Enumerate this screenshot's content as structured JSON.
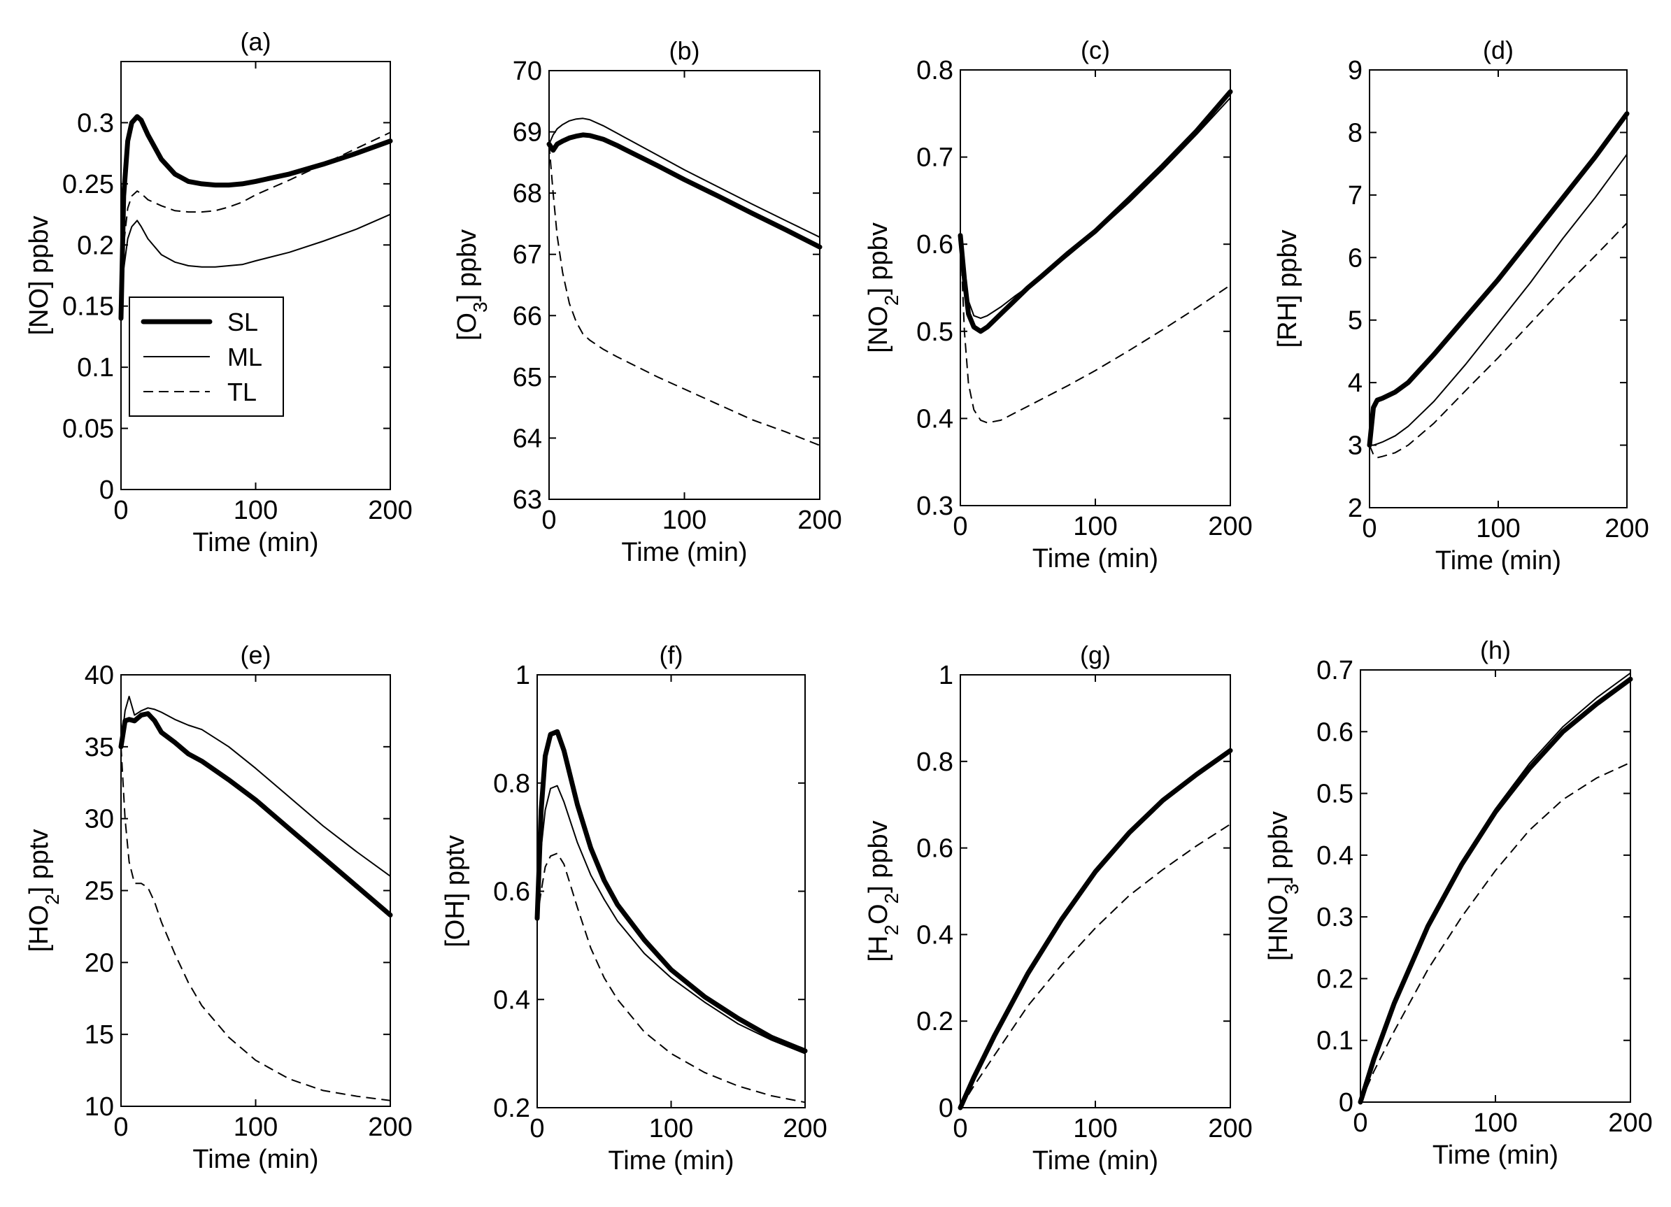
{
  "figure": {
    "legend": {
      "entries": [
        "SL",
        "ML",
        "TL"
      ],
      "placement": "inside-left panel (a)"
    },
    "time_unit_label": "Time (min)"
  },
  "chart_data": [
    {
      "id": "a",
      "type": "line",
      "title": "(a)",
      "ylabel": "[NO] ppbv",
      "ysub": "",
      "yunit": "",
      "xlabel": "Time (min)",
      "xlim": [
        0,
        200
      ],
      "ylim": [
        0,
        0.35
      ],
      "xticks": [
        0,
        100,
        200
      ],
      "yticks": [
        0,
        0.05,
        0.1,
        0.15,
        0.2,
        0.25,
        0.3
      ],
      "ytick_labels": [
        "0",
        "0.05",
        "0.1",
        "0.15",
        "0.2",
        "0.25",
        "0.3"
      ],
      "x": [
        0,
        2,
        5,
        8,
        12,
        15,
        20,
        30,
        40,
        50,
        60,
        70,
        80,
        90,
        100,
        125,
        150,
        175,
        200
      ],
      "series": [
        {
          "name": "SL",
          "values": [
            0.14,
            0.24,
            0.285,
            0.3,
            0.305,
            0.302,
            0.29,
            0.27,
            0.258,
            0.252,
            0.25,
            0.249,
            0.249,
            0.25,
            0.252,
            0.258,
            0.266,
            0.275,
            0.285
          ]
        },
        {
          "name": "ML",
          "values": [
            0.14,
            0.18,
            0.205,
            0.215,
            0.22,
            0.215,
            0.205,
            0.192,
            0.186,
            0.183,
            0.182,
            0.182,
            0.183,
            0.184,
            0.187,
            0.194,
            0.203,
            0.213,
            0.225
          ]
        },
        {
          "name": "TL",
          "values": [
            0.14,
            0.2,
            0.23,
            0.24,
            0.244,
            0.242,
            0.237,
            0.232,
            0.228,
            0.227,
            0.227,
            0.228,
            0.231,
            0.235,
            0.241,
            0.253,
            0.266,
            0.279,
            0.292
          ]
        }
      ]
    },
    {
      "id": "b",
      "type": "line",
      "title": "(b)",
      "ylabel": "[O",
      "ysub": "3",
      "yunit": "] ppbv",
      "xlabel": "Time (min)",
      "xlim": [
        0,
        200
      ],
      "ylim": [
        63,
        70
      ],
      "xticks": [
        0,
        100,
        200
      ],
      "yticks": [
        63,
        64,
        65,
        66,
        67,
        68,
        69,
        70
      ],
      "ytick_labels": [
        "63",
        "64",
        "65",
        "66",
        "67",
        "68",
        "69",
        "70"
      ],
      "x": [
        0,
        3,
        6,
        10,
        15,
        20,
        25,
        30,
        40,
        50,
        60,
        80,
        100,
        125,
        150,
        175,
        200
      ],
      "series": [
        {
          "name": "SL",
          "values": [
            68.8,
            68.7,
            68.8,
            68.85,
            68.9,
            68.93,
            68.95,
            68.94,
            68.88,
            68.78,
            68.67,
            68.45,
            68.22,
            67.95,
            67.67,
            67.4,
            67.12
          ]
        },
        {
          "name": "ML",
          "values": [
            68.8,
            68.95,
            69.05,
            69.12,
            69.18,
            69.21,
            69.22,
            69.2,
            69.1,
            68.98,
            68.86,
            68.62,
            68.38,
            68.1,
            67.82,
            67.55,
            67.28
          ]
        },
        {
          "name": "TL",
          "values": [
            68.8,
            68.0,
            67.3,
            66.7,
            66.2,
            65.9,
            65.7,
            65.6,
            65.45,
            65.33,
            65.22,
            65.0,
            64.8,
            64.55,
            64.3,
            64.1,
            63.88
          ]
        }
      ]
    },
    {
      "id": "c",
      "type": "line",
      "title": "(c)",
      "ylabel": "[NO",
      "ysub": "2",
      "yunit": "] ppbv",
      "xlabel": "Time (min)",
      "xlim": [
        0,
        200
      ],
      "ylim": [
        0.3,
        0.8
      ],
      "xticks": [
        0,
        100,
        200
      ],
      "yticks": [
        0.3,
        0.4,
        0.5,
        0.6,
        0.7,
        0.8
      ],
      "ytick_labels": [
        "0.3",
        "0.4",
        "0.5",
        "0.6",
        "0.7",
        "0.8"
      ],
      "x": [
        0,
        3,
        6,
        10,
        15,
        20,
        30,
        40,
        50,
        60,
        80,
        100,
        125,
        150,
        175,
        200
      ],
      "series": [
        {
          "name": "SL",
          "values": [
            0.61,
            0.56,
            0.52,
            0.505,
            0.5,
            0.505,
            0.52,
            0.535,
            0.55,
            0.563,
            0.59,
            0.615,
            0.652,
            0.69,
            0.73,
            0.775
          ]
        },
        {
          "name": "ML",
          "values": [
            0.61,
            0.57,
            0.535,
            0.518,
            0.515,
            0.518,
            0.528,
            0.54,
            0.551,
            0.562,
            0.587,
            0.613,
            0.648,
            0.686,
            0.726,
            0.768
          ]
        },
        {
          "name": "TL",
          "values": [
            0.61,
            0.5,
            0.44,
            0.41,
            0.398,
            0.395,
            0.398,
            0.406,
            0.414,
            0.422,
            0.438,
            0.455,
            0.478,
            0.502,
            0.527,
            0.553
          ]
        }
      ]
    },
    {
      "id": "d",
      "type": "line",
      "title": "(d)",
      "ylabel": "[RH] ppbv",
      "ysub": "",
      "yunit": "",
      "xlabel": "Time (min)",
      "xlim": [
        0,
        200
      ],
      "ylim": [
        2,
        9
      ],
      "xticks": [
        0,
        100,
        200
      ],
      "yticks": [
        2,
        3,
        4,
        5,
        6,
        7,
        8,
        9
      ],
      "ytick_labels": [
        "2",
        "3",
        "4",
        "5",
        "6",
        "7",
        "8",
        "9"
      ],
      "x": [
        0,
        3,
        6,
        10,
        20,
        30,
        50,
        75,
        100,
        125,
        150,
        175,
        200
      ],
      "series": [
        {
          "name": "SL",
          "values": [
            3.0,
            3.6,
            3.72,
            3.75,
            3.85,
            4.0,
            4.45,
            5.05,
            5.65,
            6.3,
            6.95,
            7.6,
            8.3
          ]
        },
        {
          "name": "ML",
          "values": [
            3.0,
            3.0,
            3.02,
            3.05,
            3.15,
            3.3,
            3.7,
            4.3,
            4.95,
            5.6,
            6.3,
            6.95,
            7.65
          ]
        },
        {
          "name": "TL",
          "values": [
            3.0,
            2.85,
            2.8,
            2.82,
            2.88,
            3.0,
            3.35,
            3.88,
            4.4,
            4.95,
            5.5,
            6.02,
            6.55
          ]
        }
      ]
    },
    {
      "id": "e",
      "type": "line",
      "title": "(e)",
      "ylabel": "[HO",
      "ysub": "2",
      "yunit": "] pptv",
      "xlabel": "Time (min)",
      "xlim": [
        0,
        200
      ],
      "ylim": [
        10,
        40
      ],
      "xticks": [
        0,
        100,
        200
      ],
      "yticks": [
        10,
        15,
        20,
        25,
        30,
        35,
        40
      ],
      "ytick_labels": [
        "10",
        "15",
        "20",
        "25",
        "30",
        "35",
        "40"
      ],
      "x": [
        0,
        3,
        6,
        10,
        15,
        20,
        25,
        30,
        40,
        50,
        60,
        80,
        100,
        125,
        150,
        175,
        200
      ],
      "series": [
        {
          "name": "SL",
          "values": [
            35.0,
            36.8,
            36.9,
            36.8,
            37.2,
            37.3,
            36.8,
            36.0,
            35.3,
            34.5,
            34.0,
            32.7,
            31.3,
            29.3,
            27.3,
            25.3,
            23.3
          ]
        },
        {
          "name": "ML",
          "values": [
            35.0,
            37.5,
            38.5,
            37.2,
            37.5,
            37.7,
            37.6,
            37.4,
            36.9,
            36.5,
            36.2,
            35.0,
            33.5,
            31.5,
            29.5,
            27.7,
            26.0
          ]
        },
        {
          "name": "TL",
          "values": [
            35.0,
            30.0,
            27.0,
            25.5,
            25.5,
            25.2,
            24.2,
            22.8,
            20.6,
            18.6,
            17.0,
            14.8,
            13.2,
            11.9,
            11.1,
            10.7,
            10.4
          ]
        }
      ]
    },
    {
      "id": "f",
      "type": "line",
      "title": "(f)",
      "ylabel": "[OH] pptv",
      "ysub": "",
      "yunit": "",
      "xlabel": "Time (min)",
      "xlim": [
        0,
        200
      ],
      "ylim": [
        0.2,
        1.0
      ],
      "xticks": [
        0,
        100,
        200
      ],
      "yticks": [
        0.2,
        0.4,
        0.6,
        0.8,
        1.0
      ],
      "ytick_labels": [
        "0.2",
        "0.4",
        "0.6",
        "0.8",
        "1"
      ],
      "x": [
        0,
        3,
        6,
        10,
        15,
        20,
        30,
        40,
        50,
        60,
        80,
        100,
        125,
        150,
        175,
        200
      ],
      "series": [
        {
          "name": "SL",
          "values": [
            0.55,
            0.75,
            0.85,
            0.89,
            0.895,
            0.86,
            0.76,
            0.68,
            0.62,
            0.575,
            0.51,
            0.455,
            0.405,
            0.365,
            0.33,
            0.305
          ]
        },
        {
          "name": "ML",
          "values": [
            0.55,
            0.68,
            0.75,
            0.79,
            0.795,
            0.765,
            0.69,
            0.63,
            0.585,
            0.545,
            0.485,
            0.44,
            0.395,
            0.355,
            0.325,
            0.3
          ]
        },
        {
          "name": "TL",
          "values": [
            0.55,
            0.6,
            0.645,
            0.665,
            0.67,
            0.65,
            0.57,
            0.495,
            0.44,
            0.4,
            0.34,
            0.3,
            0.265,
            0.24,
            0.222,
            0.21
          ]
        }
      ]
    },
    {
      "id": "g",
      "type": "line",
      "title": "(g)",
      "ylabel": "[H",
      "ysub": "2",
      "ylabel2": "O",
      "ysub2": "2",
      "yunit": "] ppbv",
      "xlabel": "Time (min)",
      "xlim": [
        0,
        200
      ],
      "ylim": [
        0,
        1.0
      ],
      "xticks": [
        0,
        100,
        200
      ],
      "yticks": [
        0,
        0.2,
        0.4,
        0.6,
        0.8,
        1.0
      ],
      "ytick_labels": [
        "0",
        "0.2",
        "0.4",
        "0.6",
        "0.8",
        "1"
      ],
      "x": [
        0,
        10,
        25,
        50,
        75,
        100,
        125,
        150,
        175,
        200
      ],
      "series": [
        {
          "name": "SL",
          "values": [
            0.0,
            0.07,
            0.165,
            0.31,
            0.435,
            0.545,
            0.635,
            0.71,
            0.77,
            0.825
          ]
        },
        {
          "name": "ML",
          "values": [
            0.0,
            0.07,
            0.165,
            0.31,
            0.435,
            0.545,
            0.635,
            0.71,
            0.77,
            0.825
          ]
        },
        {
          "name": "TL",
          "values": [
            0.0,
            0.05,
            0.12,
            0.235,
            0.33,
            0.415,
            0.49,
            0.55,
            0.605,
            0.655
          ]
        }
      ]
    },
    {
      "id": "h",
      "type": "line",
      "title": "(h)",
      "ylabel": "[HNO",
      "ysub": "3",
      "yunit": "] ppbv",
      "xlabel": "Time (min)",
      "xlim": [
        0,
        200
      ],
      "ylim": [
        0,
        0.7
      ],
      "xticks": [
        0,
        100,
        200
      ],
      "yticks": [
        0,
        0.1,
        0.2,
        0.3,
        0.4,
        0.5,
        0.6,
        0.7
      ],
      "ytick_labels": [
        "0",
        "0.1",
        "0.2",
        "0.3",
        "0.4",
        "0.5",
        "0.6",
        "0.7"
      ],
      "x": [
        0,
        10,
        25,
        50,
        75,
        100,
        125,
        150,
        175,
        200
      ],
      "series": [
        {
          "name": "SL",
          "values": [
            0.0,
            0.07,
            0.16,
            0.285,
            0.385,
            0.47,
            0.54,
            0.6,
            0.645,
            0.685
          ]
        },
        {
          "name": "ML",
          "values": [
            0.0,
            0.07,
            0.162,
            0.29,
            0.39,
            0.475,
            0.548,
            0.608,
            0.655,
            0.695
          ]
        },
        {
          "name": "TL",
          "values": [
            0.0,
            0.05,
            0.115,
            0.215,
            0.3,
            0.375,
            0.44,
            0.49,
            0.525,
            0.55
          ]
        }
      ]
    }
  ]
}
